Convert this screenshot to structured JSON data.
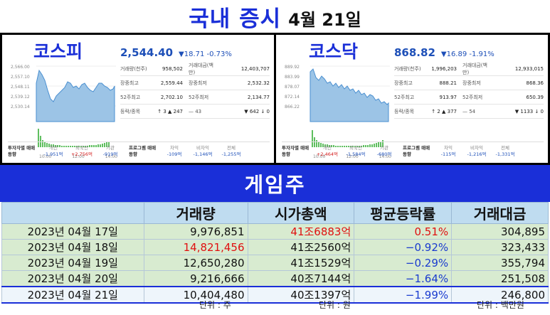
{
  "header": {
    "title": "국내 증시",
    "date": "4월 21일"
  },
  "kospi": {
    "name": "코스피",
    "price": "2,544.40",
    "change": "▼18.71  -0.73%",
    "stats": [
      {
        "l1": "거래량(천주)",
        "v1": "958,502",
        "l2": "거래대금(백만)",
        "v2": "12,403,707"
      },
      {
        "l1": "장중최고",
        "v1": "2,559.44",
        "l2": "장중최저",
        "v2": "2,532.32"
      },
      {
        "l1": "52주최고",
        "v1": "2,702.10",
        "l2": "52주최저",
        "v2": "2,134.77"
      },
      {
        "l1": "등락/종목",
        "v1": "↑ 3   ▲ 247",
        "l2": "— 43",
        "v2": "▼ 642   ↓ 0"
      }
    ],
    "yticks": [
      "2,566.00",
      "2,557.10",
      "2,548.11",
      "2,539.12",
      "2,530.14"
    ],
    "xticks": [
      "10:00",
      "12:00",
      "14:00"
    ],
    "flow": {
      "label1": "투자자별 매매동향",
      "c1": {
        "l": "개인",
        "v": "-1,951억"
      },
      "c2": {
        "l": "외국인",
        "v": "+2,756억"
      },
      "c3": {
        "l": "기관",
        "v": "-919억"
      },
      "label2": "프로그램 매매동향",
      "c4": {
        "l": "차익",
        "v": "-109억"
      },
      "c5": {
        "l": "비차익",
        "v": "-1,146억"
      },
      "c6": {
        "l": "전체",
        "v": "-1,255억"
      }
    }
  },
  "kosdaq": {
    "name": "코스닥",
    "price": "868.82",
    "change": "▼16.89  -1.91%",
    "stats": [
      {
        "l1": "거래량(천주)",
        "v1": "1,996,203",
        "l2": "거래대금(백만)",
        "v2": "12,933,015"
      },
      {
        "l1": "장중최고",
        "v1": "888.21",
        "l2": "장중최저",
        "v2": "868.36"
      },
      {
        "l1": "52주최고",
        "v1": "913.97",
        "l2": "52주최저",
        "v2": "650.39"
      },
      {
        "l1": "등락/종목",
        "v1": "↑ 2   ▲ 377",
        "l2": "— 54",
        "v2": "▼ 1133   ↓ 0"
      }
    ],
    "yticks": [
      "889.92",
      "883.99",
      "878.07",
      "872.14",
      "866.22"
    ],
    "xticks": [
      "10:00",
      "12:00",
      "14:00"
    ],
    "flow": {
      "label1": "투자자별 매매동향",
      "c1": {
        "l": "개인",
        "v": "+2,464억"
      },
      "c2": {
        "l": "외국인",
        "v": "-1,584억"
      },
      "c3": {
        "l": "기관",
        "v": "-680억"
      },
      "label2": "프로그램 매매동향",
      "c4": {
        "l": "차익",
        "v": "-115억"
      },
      "c5": {
        "l": "비차익",
        "v": "-1,216억"
      },
      "c6": {
        "l": "전체",
        "v": "-1,331억"
      }
    }
  },
  "game": {
    "title": "게임주",
    "columns": [
      "",
      "거래량",
      "시가총액",
      "평균등락률",
      "거래대금"
    ],
    "rows": [
      {
        "date": "2023년 04월 17일",
        "volume": "9,976,851",
        "cap": "41조6883억",
        "rate": "0.51%",
        "amount": "304,895"
      },
      {
        "date": "2023년 04월 18일",
        "volume": "14,821,456",
        "cap": "41조2560억",
        "rate": "−0.92%",
        "amount": "323,433"
      },
      {
        "date": "2023년 04월 19일",
        "volume": "12,650,280",
        "cap": "41조1529억",
        "rate": "−0.29%",
        "amount": "355,794"
      },
      {
        "date": "2023년 04월 20일",
        "volume": "9,216,666",
        "cap": "40조7144억",
        "rate": "−1.64%",
        "amount": "251,508"
      },
      {
        "date": "2023년 04월 21일",
        "volume": "10,404,480",
        "cap": "40조1397억",
        "rate": "−1.99%",
        "amount": "246,800"
      }
    ],
    "units": {
      "u1": "단위 : 주",
      "u2": "단위 : 원",
      "u3": "단위 : 백만원"
    }
  },
  "colors": {
    "accent": "#1a2fd8",
    "up": "#e01010",
    "down": "#1a3bcf",
    "header_row": "#bfdcf0",
    "row_bg": "#d8ebd0"
  }
}
